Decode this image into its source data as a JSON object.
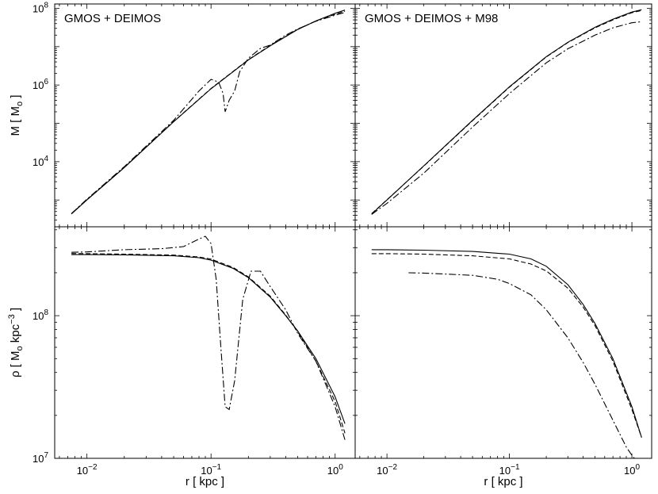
{
  "chart_data": [
    {
      "type": "line",
      "panel": "top-left",
      "title": "GMOS + DEIMOS",
      "xscale": "log",
      "yscale": "log",
      "xlim": [
        0.0055,
        1.45
      ],
      "ylim": [
        200,
        130000000
      ],
      "xlabel": "",
      "ylabel_main": "M",
      "ylabel_unit": "M",
      "ylabel_unit_sub": "o",
      "xticks": [],
      "yticks": [
        {
          "value": 10000,
          "mant": "10",
          "exp": "4"
        },
        {
          "value": 1000000,
          "mant": "10",
          "exp": "6"
        },
        {
          "value": 100000000,
          "mant": "10",
          "exp": "8"
        }
      ],
      "series": [
        {
          "style": "solid",
          "x": [
            0.0075,
            0.01,
            0.02,
            0.05,
            0.1,
            0.2,
            0.3,
            0.5,
            0.7,
            1.0,
            1.2
          ],
          "y": [
            430,
            1000,
            7000,
            110000,
            800000,
            4500000,
            10500000,
            28000000,
            47000000,
            74000000,
            90000000
          ]
        },
        {
          "style": "dashed",
          "x": [
            0.0075,
            0.01,
            0.02,
            0.05,
            0.1,
            0.2,
            0.3,
            0.5,
            0.7,
            1.0,
            1.2
          ],
          "y": [
            440,
            1020,
            7100,
            112000,
            810000,
            4600000,
            10800000,
            28500000,
            47000000,
            70000000,
            84000000
          ]
        },
        {
          "style": "dashdot",
          "x": [
            0.0075,
            0.01,
            0.02,
            0.05,
            0.08,
            0.1,
            0.115,
            0.125,
            0.13,
            0.14,
            0.155,
            0.17,
            0.2,
            0.25,
            0.3,
            0.4,
            0.5,
            0.7,
            1.0,
            1.2
          ],
          "y": [
            440,
            1050,
            7400,
            120000,
            700000,
            1400000,
            1200000,
            600000,
            200000,
            400000,
            700000,
            2200000,
            5000000,
            9000000,
            11000000,
            20000000,
            29000000,
            46000000,
            66000000,
            78000000
          ]
        }
      ]
    },
    {
      "type": "line",
      "panel": "top-right",
      "title": "GMOS + DEIMOS + M98",
      "xscale": "log",
      "yscale": "log",
      "xlim": [
        0.0055,
        1.45
      ],
      "ylim": [
        200,
        130000000
      ],
      "xlabel": "",
      "ylabel_main": "",
      "ylabel_unit": "",
      "ylabel_unit_sub": "",
      "xticks": [],
      "yticks": [],
      "series": [
        {
          "style": "solid",
          "x": [
            0.0075,
            0.01,
            0.02,
            0.05,
            0.1,
            0.2,
            0.3,
            0.5,
            0.7,
            1.0,
            1.2
          ],
          "y": [
            430,
            1000,
            7800,
            120000,
            900000,
            5500000,
            13000000,
            32000000,
            52000000,
            80000000,
            92000000
          ]
        },
        {
          "style": "dashed",
          "x": [
            0.0075,
            0.01,
            0.02,
            0.05,
            0.1,
            0.2,
            0.3,
            0.5,
            0.7,
            1.0,
            1.2
          ],
          "y": [
            440,
            1010,
            7700,
            118000,
            880000,
            5400000,
            12800000,
            31000000,
            50000000,
            77000000,
            88000000
          ]
        },
        {
          "style": "dashdot",
          "x": [
            0.0075,
            0.01,
            0.02,
            0.05,
            0.1,
            0.2,
            0.3,
            0.5,
            0.7,
            1.0,
            1.2
          ],
          "y": [
            420,
            820,
            5000,
            80000,
            600000,
            3800000,
            8800000,
            20000000,
            31000000,
            42000000,
            45000000
          ]
        }
      ]
    },
    {
      "type": "line",
      "panel": "bottom-left",
      "title": "",
      "xscale": "log",
      "yscale": "log",
      "xlim": [
        0.0055,
        1.45
      ],
      "ylim": [
        10000000,
        420000000
      ],
      "xlabel": "r  [ kpc ]",
      "ylabel_main": "ρ",
      "ylabel_unit": "M",
      "ylabel_unit_sub": "o",
      "ylabel_unit2": "kpc",
      "ylabel_unit2_sup": "−3",
      "xticks": [
        {
          "value": 0.01,
          "mant": "10",
          "exp": "−2"
        },
        {
          "value": 0.1,
          "mant": "10",
          "exp": "−1"
        },
        {
          "value": 1,
          "mant": "10",
          "exp": "0"
        }
      ],
      "yticks": [
        {
          "value": 10000000,
          "mant": "10",
          "exp": "7"
        },
        {
          "value": 100000000,
          "mant": "10",
          "exp": "8"
        }
      ],
      "series": [
        {
          "style": "solid",
          "x": [
            0.0075,
            0.01,
            0.02,
            0.05,
            0.08,
            0.1,
            0.15,
            0.2,
            0.3,
            0.4,
            0.5,
            0.7,
            1.0,
            1.2
          ],
          "y": [
            268000000,
            268000000,
            267000000,
            263000000,
            255000000,
            245000000,
            215000000,
            185000000,
            135000000,
            100000000,
            78000000,
            50000000,
            27000000,
            17500000
          ]
        },
        {
          "style": "dashed",
          "x": [
            0.0075,
            0.01,
            0.02,
            0.05,
            0.08,
            0.1,
            0.15,
            0.2,
            0.3,
            0.4,
            0.5,
            0.7,
            1.0,
            1.2
          ],
          "y": [
            273000000,
            272000000,
            270000000,
            266000000,
            258000000,
            249000000,
            218000000,
            187000000,
            137000000,
            101000000,
            77000000,
            48000000,
            25000000,
            15000000
          ]
        },
        {
          "style": "dashdot",
          "x": [
            0.0075,
            0.01,
            0.02,
            0.04,
            0.06,
            0.08,
            0.09,
            0.1,
            0.11,
            0.12,
            0.13,
            0.14,
            0.155,
            0.18,
            0.21,
            0.25,
            0.3,
            0.4,
            0.5,
            0.7,
            1.0,
            1.2
          ],
          "y": [
            278000000,
            280000000,
            290000000,
            295000000,
            305000000,
            345000000,
            360000000,
            320000000,
            180000000,
            60000000,
            23000000,
            22000000,
            35000000,
            130000000,
            205000000,
            205000000,
            160000000,
            110000000,
            75000000,
            48000000,
            23000000,
            13500000
          ]
        }
      ]
    },
    {
      "type": "line",
      "panel": "bottom-right",
      "title": "",
      "xscale": "log",
      "yscale": "log",
      "xlim": [
        0.0055,
        1.45
      ],
      "ylim": [
        10000000,
        420000000
      ],
      "xlabel": "r  [ kpc ]",
      "ylabel_main": "",
      "ylabel_unit": "",
      "ylabel_unit_sub": "",
      "ylabel_unit2": "",
      "ylabel_unit2_sup": "",
      "xticks": [
        {
          "value": 0.01,
          "mant": "10",
          "exp": "−2"
        },
        {
          "value": 0.1,
          "mant": "10",
          "exp": "−1"
        },
        {
          "value": 1,
          "mant": "10",
          "exp": "0"
        }
      ],
      "yticks": [],
      "series": [
        {
          "style": "solid",
          "x": [
            0.0075,
            0.01,
            0.02,
            0.05,
            0.1,
            0.15,
            0.2,
            0.3,
            0.4,
            0.5,
            0.7,
            1.0,
            1.2
          ],
          "y": [
            290000000,
            290000000,
            288000000,
            282000000,
            270000000,
            250000000,
            222000000,
            165000000,
            120000000,
            88000000,
            50000000,
            23000000,
            14000000
          ]
        },
        {
          "style": "dashed",
          "x": [
            0.0075,
            0.01,
            0.02,
            0.05,
            0.1,
            0.15,
            0.2,
            0.3,
            0.4,
            0.5,
            0.7,
            1.0,
            1.2
          ],
          "y": [
            272000000,
            272000000,
            270000000,
            263000000,
            250000000,
            230000000,
            206000000,
            156000000,
            115000000,
            85000000,
            48000000,
            22000000,
            14000000
          ]
        },
        {
          "style": "dashdot",
          "x": [
            0.015,
            0.02,
            0.05,
            0.08,
            0.1,
            0.15,
            0.2,
            0.3,
            0.4,
            0.5,
            0.7,
            0.9,
            1.0,
            1.1
          ],
          "y": [
            200000000,
            199000000,
            192000000,
            180000000,
            168000000,
            140000000,
            110000000,
            70000000,
            47000000,
            33000000,
            18500000,
            12000000,
            10500000,
            9500000
          ]
        }
      ]
    }
  ]
}
